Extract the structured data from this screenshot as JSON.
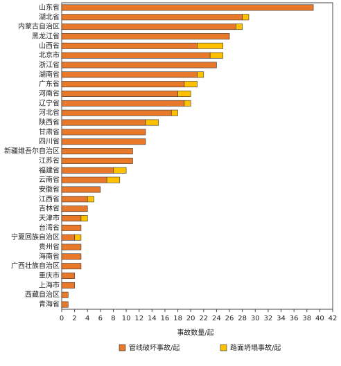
{
  "chart_data": {
    "type": "stacked-barh",
    "categories": [
      "山东省",
      "湖北省",
      "内蒙古自治区",
      "黑龙江省",
      "山西省",
      "北京市",
      "浙江省",
      "湖南省",
      "广东省",
      "河南省",
      "辽宁省",
      "河北省",
      "陕西省",
      "甘肃省",
      "四川省",
      "新疆维吾尔自治区",
      "江苏省",
      "福建省",
      "云南省",
      "安徽省",
      "江西省",
      "吉林省",
      "天津市",
      "台湾省",
      "宁夏回族自治区",
      "贵州省",
      "海南省",
      "广西壮族自治区",
      "重庆市",
      "上海市",
      "西藏自治区",
      "青海省"
    ],
    "series": [
      {
        "name": "管线破坏事故/起",
        "color": "#e8782a",
        "values": [
          39,
          28,
          27,
          26,
          21,
          23,
          24,
          21,
          19,
          18,
          19,
          17,
          13,
          13,
          13,
          11,
          11,
          8,
          7,
          6,
          4,
          4,
          3,
          3,
          2,
          3,
          3,
          3,
          2,
          2,
          1,
          1
        ]
      },
      {
        "name": "路面坍塌事故/起",
        "color": "#ffc000",
        "values": [
          0,
          1,
          1,
          0,
          4,
          2,
          0,
          1,
          2,
          2,
          1,
          1,
          2,
          0,
          0,
          0,
          0,
          2,
          2,
          0,
          1,
          0,
          1,
          0,
          1,
          0,
          0,
          0,
          0,
          0,
          0,
          0
        ]
      }
    ],
    "xlabel": "事故数量/起",
    "xlim": [
      0,
      42
    ],
    "xticks": [
      0,
      2,
      4,
      6,
      8,
      10,
      12,
      14,
      16,
      18,
      20,
      22,
      24,
      26,
      28,
      30,
      32,
      34,
      36,
      38,
      40,
      42
    ],
    "legend": "bottom"
  }
}
